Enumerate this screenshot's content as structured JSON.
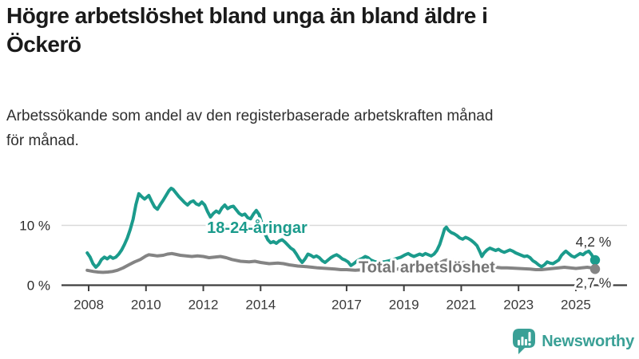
{
  "header": {
    "title": "Högre arbetslöshet bland unga än bland äldre i Öckerö",
    "title_lines": [
      "Högre arbetslöshet bland unga än bland äldre i",
      "Öckerö"
    ],
    "subtitle": "Arbetssökande som andel av den registerbaserade arbetskraften månad för månad.",
    "subtitle_lines": [
      "Arbetssökande som andel av den registerbaserade arbetskraften månad",
      "för månad."
    ]
  },
  "branding": {
    "logo_text": "Newsworthy",
    "logo_color": "#3aa096"
  },
  "chart_data": {
    "type": "line",
    "unit": "%",
    "grid": "horizontal-only",
    "legend": "inline-labels",
    "x_axis": {
      "tick_labels": [
        "2008",
        "2010",
        "2012",
        "2014",
        "2017",
        "2019",
        "2021",
        "2023",
        "2025"
      ],
      "tick_years": [
        2008,
        2010,
        2012,
        2014,
        2017,
        2019,
        2021,
        2023,
        2025
      ],
      "range": [
        2007.05,
        2026.8
      ]
    },
    "y_axis": {
      "ticks": [
        {
          "value": 0,
          "label": "0 %"
        },
        {
          "value": 10,
          "label": "10 %"
        }
      ],
      "grid_values": [
        10
      ],
      "range": [
        0,
        17.5
      ]
    },
    "colors": {
      "young": "#1b9b8c",
      "total": "#848484",
      "axis": "#3f3f3f",
      "gridline": "#d9d9d9",
      "end_label": "#333333"
    },
    "series_labels": [
      {
        "text": "18-24-åringar",
        "x": 2013.88,
        "y": 9.7,
        "color": "#1b9b8c"
      },
      {
        "text": "Total arbetslöshet",
        "x": 2019.8,
        "y": 3.1,
        "color": "#757575"
      }
    ],
    "series": [
      {
        "name": "18-24-åringar",
        "color": "#1b9b8c",
        "end_value": 4.2,
        "end_label": "4,2 %",
        "end_label_dy": -17,
        "points": [
          [
            2007.95,
            5.4
          ],
          [
            2008.05,
            4.7
          ],
          [
            2008.15,
            3.6
          ],
          [
            2008.25,
            3.0
          ],
          [
            2008.35,
            3.5
          ],
          [
            2008.45,
            4.3
          ],
          [
            2008.55,
            4.7
          ],
          [
            2008.65,
            4.4
          ],
          [
            2008.75,
            4.8
          ],
          [
            2008.85,
            4.5
          ],
          [
            2008.95,
            4.7
          ],
          [
            2009.05,
            5.2
          ],
          [
            2009.15,
            5.9
          ],
          [
            2009.25,
            6.8
          ],
          [
            2009.35,
            7.9
          ],
          [
            2009.45,
            9.3
          ],
          [
            2009.55,
            11.0
          ],
          [
            2009.65,
            13.5
          ],
          [
            2009.75,
            15.3
          ],
          [
            2009.85,
            14.8
          ],
          [
            2009.95,
            14.4
          ],
          [
            2010.05,
            14.8
          ],
          [
            2010.1,
            15.0
          ],
          [
            2010.2,
            14.0
          ],
          [
            2010.3,
            13.1
          ],
          [
            2010.4,
            12.7
          ],
          [
            2010.5,
            13.5
          ],
          [
            2010.6,
            14.2
          ],
          [
            2010.7,
            15.0
          ],
          [
            2010.8,
            15.8
          ],
          [
            2010.88,
            16.2
          ],
          [
            2010.95,
            16.0
          ],
          [
            2011.05,
            15.4
          ],
          [
            2011.15,
            14.8
          ],
          [
            2011.25,
            14.3
          ],
          [
            2011.35,
            13.8
          ],
          [
            2011.45,
            13.4
          ],
          [
            2011.55,
            13.9
          ],
          [
            2011.65,
            14.1
          ],
          [
            2011.75,
            13.6
          ],
          [
            2011.85,
            13.4
          ],
          [
            2011.95,
            13.9
          ],
          [
            2012.05,
            13.4
          ],
          [
            2012.15,
            12.3
          ],
          [
            2012.25,
            11.4
          ],
          [
            2012.35,
            12.0
          ],
          [
            2012.45,
            12.4
          ],
          [
            2012.55,
            12.1
          ],
          [
            2012.65,
            12.9
          ],
          [
            2012.75,
            13.4
          ],
          [
            2012.85,
            12.8
          ],
          [
            2012.95,
            13.1
          ],
          [
            2013.05,
            13.2
          ],
          [
            2013.15,
            12.6
          ],
          [
            2013.25,
            12.0
          ],
          [
            2013.35,
            11.7
          ],
          [
            2013.45,
            11.9
          ],
          [
            2013.55,
            11.3
          ],
          [
            2013.65,
            11.1
          ],
          [
            2013.75,
            11.9
          ],
          [
            2013.85,
            12.5
          ],
          [
            2013.95,
            11.8
          ],
          [
            2014.05,
            10.2
          ],
          [
            2014.15,
            8.6
          ],
          [
            2014.25,
            7.6
          ],
          [
            2014.35,
            7.1
          ],
          [
            2014.45,
            7.3
          ],
          [
            2014.55,
            7.0
          ],
          [
            2014.65,
            7.4
          ],
          [
            2014.75,
            7.6
          ],
          [
            2014.85,
            7.2
          ],
          [
            2014.95,
            6.7
          ],
          [
            2015.05,
            6.2
          ],
          [
            2015.15,
            5.9
          ],
          [
            2015.25,
            5.2
          ],
          [
            2015.35,
            4.4
          ],
          [
            2015.45,
            3.8
          ],
          [
            2015.55,
            4.4
          ],
          [
            2015.65,
            5.2
          ],
          [
            2015.75,
            5.0
          ],
          [
            2015.85,
            4.7
          ],
          [
            2015.95,
            4.9
          ],
          [
            2016.05,
            4.6
          ],
          [
            2016.15,
            4.1
          ],
          [
            2016.25,
            3.8
          ],
          [
            2016.35,
            4.2
          ],
          [
            2016.45,
            4.6
          ],
          [
            2016.55,
            4.9
          ],
          [
            2016.65,
            5.1
          ],
          [
            2016.75,
            4.8
          ],
          [
            2016.85,
            4.4
          ],
          [
            2016.95,
            4.2
          ],
          [
            2017.05,
            3.9
          ],
          [
            2017.15,
            3.3
          ],
          [
            2017.25,
            3.6
          ],
          [
            2017.35,
            4.0
          ],
          [
            2017.45,
            4.3
          ],
          [
            2017.55,
            4.5
          ],
          [
            2017.65,
            4.8
          ],
          [
            2017.75,
            4.6
          ],
          [
            2017.85,
            4.2
          ],
          [
            2017.95,
            4.0
          ],
          [
            2018.1,
            3.8
          ],
          [
            2018.3,
            3.9
          ],
          [
            2018.5,
            4.1
          ],
          [
            2018.7,
            4.4
          ],
          [
            2018.9,
            4.7
          ],
          [
            2019.05,
            5.1
          ],
          [
            2019.15,
            5.3
          ],
          [
            2019.25,
            5.0
          ],
          [
            2019.35,
            4.8
          ],
          [
            2019.45,
            5.0
          ],
          [
            2019.55,
            5.2
          ],
          [
            2019.65,
            5.0
          ],
          [
            2019.75,
            5.3
          ],
          [
            2019.85,
            5.1
          ],
          [
            2019.95,
            4.9
          ],
          [
            2020.05,
            5.2
          ],
          [
            2020.15,
            5.8
          ],
          [
            2020.25,
            6.8
          ],
          [
            2020.35,
            8.3
          ],
          [
            2020.42,
            9.4
          ],
          [
            2020.48,
            9.7
          ],
          [
            2020.55,
            9.2
          ],
          [
            2020.65,
            8.8
          ],
          [
            2020.75,
            8.6
          ],
          [
            2020.85,
            8.3
          ],
          [
            2020.95,
            7.9
          ],
          [
            2021.05,
            7.7
          ],
          [
            2021.15,
            8.0
          ],
          [
            2021.25,
            7.8
          ],
          [
            2021.35,
            7.5
          ],
          [
            2021.45,
            7.1
          ],
          [
            2021.55,
            6.6
          ],
          [
            2021.65,
            5.6
          ],
          [
            2021.72,
            4.8
          ],
          [
            2021.8,
            5.4
          ],
          [
            2021.9,
            5.9
          ],
          [
            2022.0,
            6.2
          ],
          [
            2022.1,
            6.0
          ],
          [
            2022.2,
            5.8
          ],
          [
            2022.3,
            6.0
          ],
          [
            2022.4,
            5.7
          ],
          [
            2022.5,
            5.5
          ],
          [
            2022.6,
            5.7
          ],
          [
            2022.7,
            5.9
          ],
          [
            2022.8,
            5.7
          ],
          [
            2022.9,
            5.4
          ],
          [
            2023.0,
            5.2
          ],
          [
            2023.1,
            5.0
          ],
          [
            2023.2,
            4.8
          ],
          [
            2023.3,
            4.9
          ],
          [
            2023.4,
            4.6
          ],
          [
            2023.5,
            4.1
          ],
          [
            2023.6,
            3.8
          ],
          [
            2023.7,
            3.4
          ],
          [
            2023.8,
            3.1
          ],
          [
            2023.9,
            3.4
          ],
          [
            2024.0,
            3.9
          ],
          [
            2024.1,
            3.7
          ],
          [
            2024.2,
            3.6
          ],
          [
            2024.3,
            3.9
          ],
          [
            2024.4,
            4.2
          ],
          [
            2024.5,
            5.0
          ],
          [
            2024.6,
            5.5
          ],
          [
            2024.65,
            5.7
          ],
          [
            2024.75,
            5.3
          ],
          [
            2024.85,
            4.9
          ],
          [
            2024.95,
            4.7
          ],
          [
            2025.05,
            5.0
          ],
          [
            2025.15,
            5.3
          ],
          [
            2025.25,
            5.1
          ],
          [
            2025.35,
            5.5
          ],
          [
            2025.45,
            5.7
          ],
          [
            2025.55,
            5.1
          ],
          [
            2025.62,
            4.5
          ],
          [
            2025.67,
            4.2
          ]
        ]
      },
      {
        "name": "Total arbetslöshet",
        "color": "#848484",
        "end_value": 2.7,
        "end_label": "2,7 %",
        "end_label_dy": 23,
        "points": [
          [
            2007.95,
            2.5
          ],
          [
            2008.17,
            2.3
          ],
          [
            2008.33,
            2.2
          ],
          [
            2008.5,
            2.15
          ],
          [
            2008.67,
            2.2
          ],
          [
            2008.83,
            2.3
          ],
          [
            2009.0,
            2.5
          ],
          [
            2009.2,
            2.9
          ],
          [
            2009.4,
            3.4
          ],
          [
            2009.6,
            3.9
          ],
          [
            2009.8,
            4.3
          ],
          [
            2010.0,
            4.9
          ],
          [
            2010.1,
            5.1
          ],
          [
            2010.25,
            5.0
          ],
          [
            2010.4,
            4.9
          ],
          [
            2010.6,
            5.0
          ],
          [
            2010.75,
            5.2
          ],
          [
            2010.9,
            5.3
          ],
          [
            2011.0,
            5.2
          ],
          [
            2011.2,
            5.0
          ],
          [
            2011.4,
            4.9
          ],
          [
            2011.6,
            4.8
          ],
          [
            2011.8,
            4.9
          ],
          [
            2012.0,
            4.8
          ],
          [
            2012.2,
            4.6
          ],
          [
            2012.4,
            4.7
          ],
          [
            2012.6,
            4.8
          ],
          [
            2012.8,
            4.6
          ],
          [
            2013.0,
            4.3
          ],
          [
            2013.3,
            4.0
          ],
          [
            2013.6,
            3.9
          ],
          [
            2013.8,
            4.0
          ],
          [
            2014.0,
            3.8
          ],
          [
            2014.3,
            3.6
          ],
          [
            2014.6,
            3.7
          ],
          [
            2014.8,
            3.6
          ],
          [
            2015.0,
            3.4
          ],
          [
            2015.3,
            3.2
          ],
          [
            2015.6,
            3.1
          ],
          [
            2015.8,
            3.0
          ],
          [
            2016.0,
            2.9
          ],
          [
            2016.3,
            2.8
          ],
          [
            2016.6,
            2.7
          ],
          [
            2016.8,
            2.6
          ],
          [
            2017.0,
            2.6
          ],
          [
            2017.3,
            2.5
          ],
          [
            2017.6,
            2.6
          ],
          [
            2017.8,
            2.5
          ],
          [
            2018.0,
            2.5
          ],
          [
            2018.3,
            2.6
          ],
          [
            2018.6,
            2.6
          ],
          [
            2018.8,
            2.7
          ],
          [
            2019.0,
            2.7
          ],
          [
            2019.3,
            2.8
          ],
          [
            2019.6,
            2.8
          ],
          [
            2019.8,
            2.9
          ],
          [
            2020.0,
            3.1
          ],
          [
            2020.2,
            3.6
          ],
          [
            2020.4,
            4.1
          ],
          [
            2020.5,
            4.2
          ],
          [
            2020.7,
            4.1
          ],
          [
            2020.9,
            3.9
          ],
          [
            2021.0,
            3.8
          ],
          [
            2021.2,
            3.7
          ],
          [
            2021.4,
            3.6
          ],
          [
            2021.6,
            3.3
          ],
          [
            2021.8,
            3.2
          ],
          [
            2022.0,
            3.1
          ],
          [
            2022.2,
            3.0
          ],
          [
            2022.4,
            2.9
          ],
          [
            2022.6,
            2.9
          ],
          [
            2022.8,
            2.85
          ],
          [
            2023.0,
            2.8
          ],
          [
            2023.2,
            2.75
          ],
          [
            2023.4,
            2.7
          ],
          [
            2023.6,
            2.6
          ],
          [
            2023.8,
            2.6
          ],
          [
            2024.0,
            2.7
          ],
          [
            2024.2,
            2.8
          ],
          [
            2024.4,
            2.9
          ],
          [
            2024.6,
            3.0
          ],
          [
            2024.8,
            2.9
          ],
          [
            2025.0,
            2.8
          ],
          [
            2025.2,
            2.9
          ],
          [
            2025.4,
            3.0
          ],
          [
            2025.55,
            2.9
          ],
          [
            2025.67,
            2.7
          ]
        ]
      }
    ]
  }
}
